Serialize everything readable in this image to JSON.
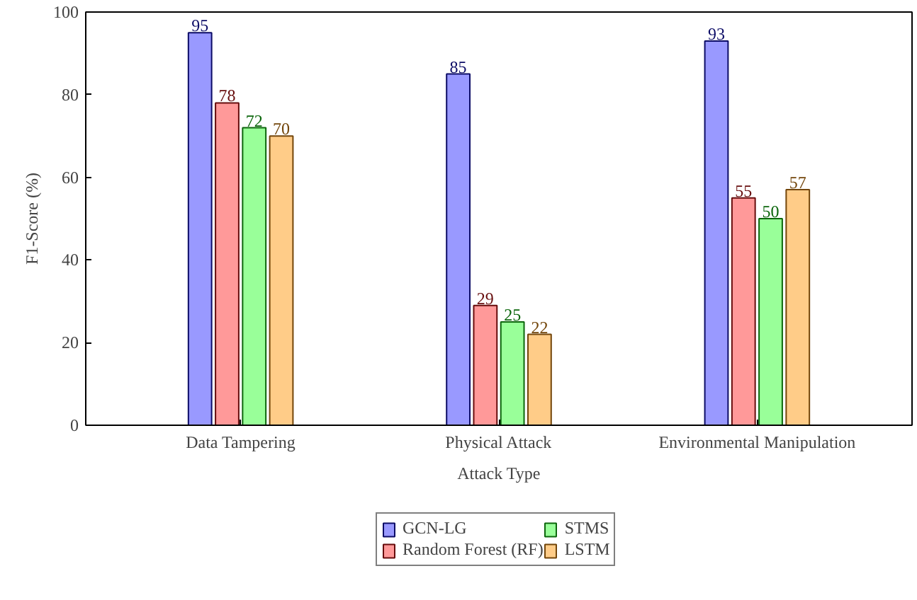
{
  "chart_data": {
    "type": "bar",
    "xlabel": "Attack Type",
    "ylabel": "F1-Score (%)",
    "categories": [
      "Data Tampering",
      "Physical Attack",
      "Environmental Manipulation"
    ],
    "series": [
      {
        "name": "GCN-LG",
        "color": "#9999ff",
        "values": [
          95,
          85,
          93
        ]
      },
      {
        "name": "Random Forest (RF)",
        "color": "#ff9999",
        "values": [
          78,
          29,
          55
        ]
      },
      {
        "name": "STMS",
        "color": "#99ff99",
        "values": [
          72,
          25,
          50
        ]
      },
      {
        "name": "LSTM",
        "color": "#ffcc88",
        "values": [
          70,
          22,
          57
        ]
      }
    ],
    "ylim": [
      0,
      100
    ],
    "yticks": [
      0,
      20,
      40,
      60,
      80,
      100
    ],
    "grid": false,
    "data_labels": true,
    "legend": "bottom"
  }
}
